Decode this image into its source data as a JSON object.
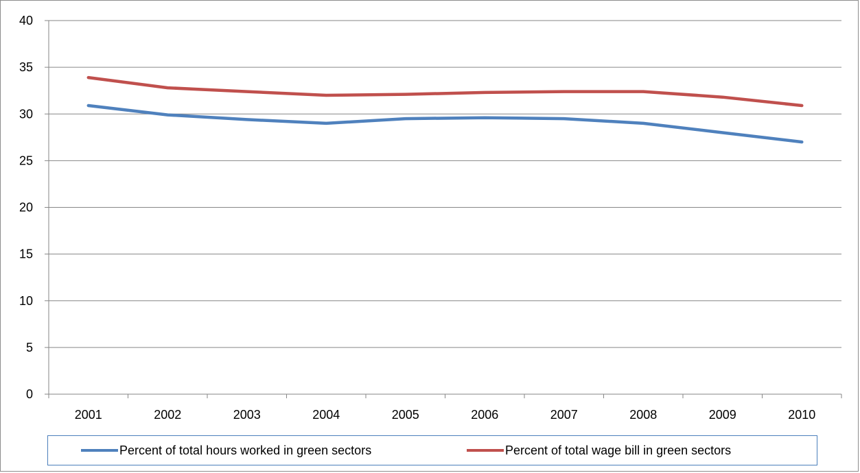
{
  "chart_data": {
    "type": "line",
    "title": "",
    "xlabel": "",
    "ylabel": "",
    "categories": [
      "2001",
      "2002",
      "2003",
      "2004",
      "2005",
      "2006",
      "2007",
      "2008",
      "2009",
      "2010"
    ],
    "ylim": [
      0,
      40
    ],
    "yticks": [
      0,
      5,
      10,
      15,
      20,
      25,
      30,
      35,
      40
    ],
    "grid": true,
    "legend_position": "bottom",
    "series": [
      {
        "name": "Percent of total hours worked in green sectors",
        "color": "#4f81bd",
        "values": [
          30.9,
          29.9,
          29.4,
          29.0,
          29.5,
          29.6,
          29.5,
          29.0,
          28.0,
          27.0
        ]
      },
      {
        "name": "Percent of total wage bill in green sectors",
        "color": "#c0504d",
        "values": [
          33.9,
          32.8,
          32.4,
          32.0,
          32.1,
          32.3,
          32.4,
          32.4,
          31.8,
          30.9
        ]
      }
    ]
  }
}
